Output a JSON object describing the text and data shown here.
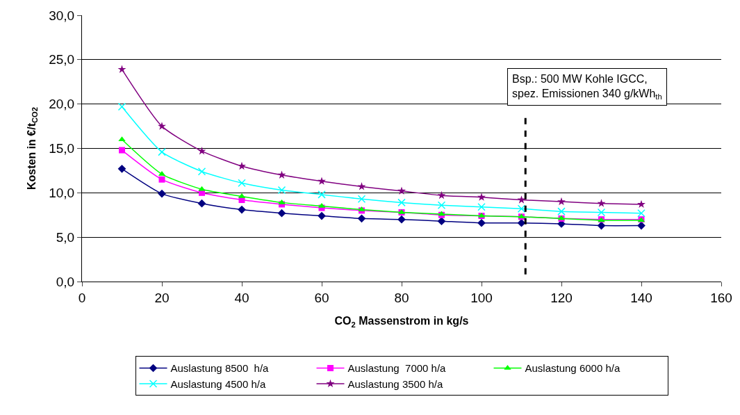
{
  "chart_data": {
    "type": "line",
    "xlabel": "CO$_{2}$ Massenstrom in kg/s",
    "ylabel": "Kosten in €/t$_{CO2}$",
    "x": [
      10,
      20,
      30,
      40,
      50,
      60,
      70,
      80,
      90,
      100,
      110,
      120,
      130,
      140
    ],
    "xlim": [
      0,
      160
    ],
    "xticks": [
      0,
      20,
      40,
      60,
      80,
      100,
      120,
      140,
      160
    ],
    "ylim": [
      0,
      30
    ],
    "yticks": [
      {
        "value": 0,
        "label": "0,0"
      },
      {
        "value": 5,
        "label": "5,0"
      },
      {
        "value": 10,
        "label": "10,0"
      },
      {
        "value": 15,
        "label": "15,0"
      },
      {
        "value": 20,
        "label": "20,0"
      },
      {
        "value": 25,
        "label": "25,0"
      },
      {
        "value": 30,
        "label": "30,0"
      }
    ],
    "grid": "y",
    "legend": "bottom",
    "line_style": "solid",
    "series": [
      {
        "name": "Auslastung 8500  h/a",
        "color": "#000080",
        "marker": "diamond",
        "values": [
          12.7,
          9.9,
          8.8,
          8.1,
          7.7,
          7.4,
          7.1,
          7.0,
          6.8,
          6.6,
          6.6,
          6.5,
          6.3,
          6.3
        ]
      },
      {
        "name": "Auslastung  7000 h/a",
        "color": "#ff00ff",
        "marker": "square",
        "values": [
          14.8,
          11.5,
          10.0,
          9.2,
          8.7,
          8.3,
          8.0,
          7.8,
          7.5,
          7.4,
          7.3,
          7.1,
          7.0,
          7.0
        ]
      },
      {
        "name": "Auslastung 6000 h/a",
        "color": "#00ff00",
        "marker": "triangle",
        "values": [
          16.0,
          12.1,
          10.4,
          9.6,
          8.9,
          8.5,
          8.1,
          7.8,
          7.6,
          7.4,
          7.3,
          7.1,
          6.9,
          6.9
        ]
      },
      {
        "name": "Auslastung 4500 h/a",
        "color": "#00ffff",
        "marker": "cross",
        "values": [
          19.7,
          14.6,
          12.4,
          11.1,
          10.3,
          9.8,
          9.3,
          8.9,
          8.6,
          8.4,
          8.2,
          7.9,
          7.8,
          7.7
        ]
      },
      {
        "name": "Auslastung 3500 h/a",
        "color": "#800080",
        "marker": "star",
        "values": [
          23.9,
          17.5,
          14.7,
          13.0,
          12.0,
          11.3,
          10.7,
          10.2,
          9.7,
          9.5,
          9.2,
          9.0,
          8.8,
          8.7
        ]
      }
    ],
    "annotations": [
      "Bsp.: 500 MW Kohle IGCC,\nspez. Emissionen 340 g/kWh$_{th}$"
    ],
    "ref_lines": [
      {
        "axis": "x",
        "value": 111,
        "color": "#000000",
        "line_style": "dashed"
      }
    ]
  }
}
